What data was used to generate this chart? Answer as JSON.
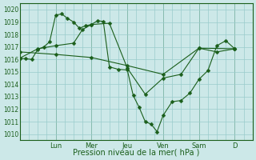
{
  "title": "Pression niveau de la mer( hPa )",
  "bg_color": "#cce8e8",
  "grid_color": "#99cccc",
  "line_color": "#1a5e1a",
  "ylim": [
    1009.5,
    1020.5
  ],
  "yticks": [
    1010,
    1011,
    1012,
    1013,
    1014,
    1015,
    1016,
    1017,
    1018,
    1019,
    1020
  ],
  "day_labels": [
    "Lun",
    "Mer",
    "Jeu",
    "Ven",
    "Sam",
    "D"
  ],
  "day_tick_x": [
    2.0,
    4.0,
    6.0,
    8.0,
    10.0,
    12.0
  ],
  "xlim": [
    0,
    13.0
  ],
  "series1": {
    "x": [
      0.0,
      0.33,
      0.66,
      1.0,
      1.33,
      1.66,
      2.0,
      2.33,
      2.66,
      3.0,
      3.33,
      3.66,
      4.0,
      4.33,
      4.66,
      5.0,
      5.5,
      6.0,
      6.33,
      6.66,
      7.0,
      7.33,
      7.66,
      8.0,
      8.5,
      9.0,
      9.5,
      10.0,
      10.5,
      11.0,
      11.5,
      12.0
    ],
    "y": [
      1016.1,
      1016.05,
      1016.0,
      1016.8,
      1017.0,
      1017.4,
      1019.55,
      1019.65,
      1019.3,
      1019.0,
      1018.5,
      1018.7,
      1018.8,
      1019.1,
      1019.05,
      1015.4,
      1015.2,
      1015.15,
      1013.1,
      1012.15,
      1011.0,
      1010.8,
      1010.2,
      1011.5,
      1012.6,
      1012.7,
      1013.3,
      1014.4,
      1015.1,
      1017.1,
      1017.5,
      1016.85
    ]
  },
  "series2": {
    "x": [
      0.0,
      1.0,
      2.0,
      3.0,
      3.5,
      4.0,
      5.0,
      6.0,
      7.0,
      8.0,
      9.0,
      10.0,
      11.0,
      12.0
    ],
    "y": [
      1016.1,
      1016.85,
      1017.1,
      1017.3,
      1018.4,
      1018.8,
      1018.9,
      1015.3,
      1013.2,
      1014.5,
      1014.8,
      1016.9,
      1016.6,
      1016.85
    ]
  },
  "series3": {
    "x": [
      0.0,
      2.0,
      4.0,
      6.0,
      8.0,
      10.0,
      12.0
    ],
    "y": [
      1016.6,
      1016.4,
      1016.15,
      1015.5,
      1014.8,
      1016.9,
      1016.85
    ]
  }
}
